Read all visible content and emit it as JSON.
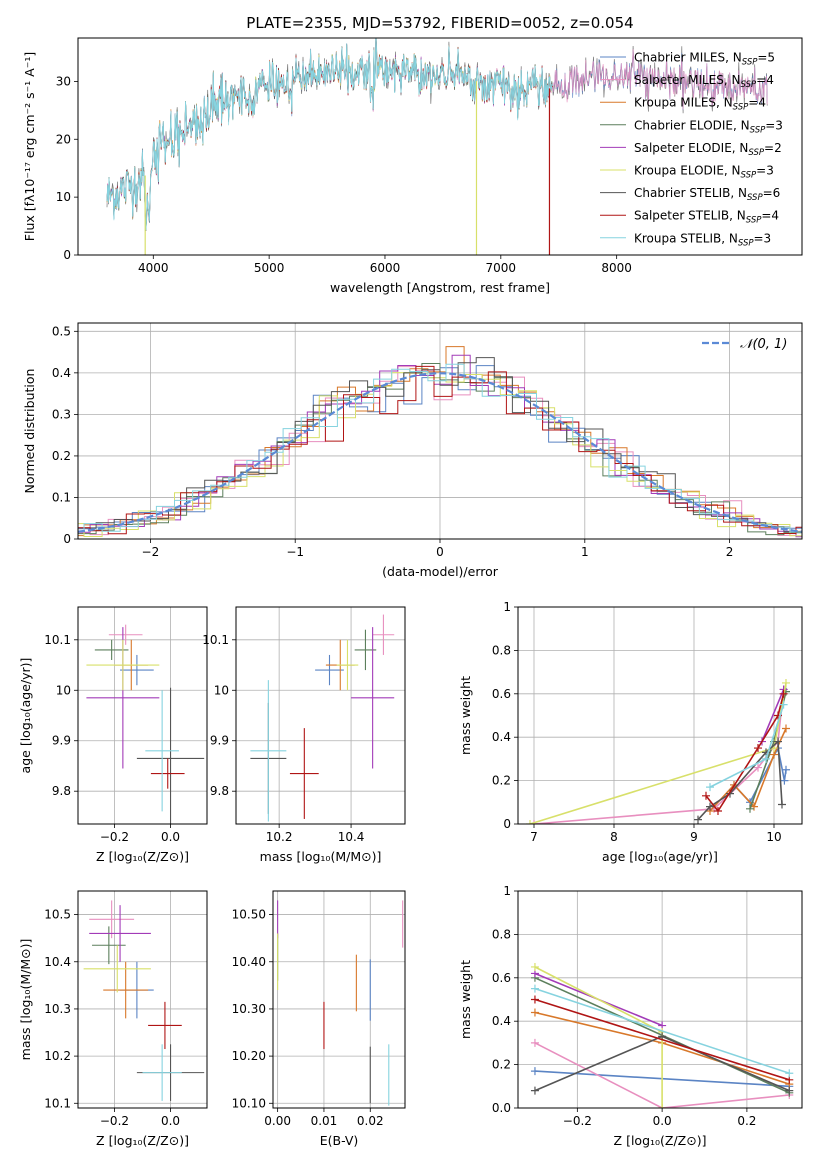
{
  "figure_title": "PLATE=2355, MJD=53792, FIBERID=0052, z=0.054",
  "models": [
    {
      "name": "Chabrier MILES",
      "nssp": "5",
      "color": "#5b84c4"
    },
    {
      "name": "Salpeter MILES",
      "nssp": "4",
      "color": "#e88fbf"
    },
    {
      "name": "Kroupa MILES",
      "nssp": "4",
      "color": "#d8782a"
    },
    {
      "name": "Chabrier ELODIE",
      "nssp": "3",
      "color": "#5c7f5c"
    },
    {
      "name": "Salpeter ELODIE",
      "nssp": "2",
      "color": "#a23bb8"
    },
    {
      "name": "Kroupa ELODIE",
      "nssp": "3",
      "color": "#d8e06a"
    },
    {
      "name": "Chabrier STELIB",
      "nssp": "6",
      "color": "#555555"
    },
    {
      "name": "Salpeter STELIB",
      "nssp": "4",
      "color": "#b01515"
    },
    {
      "name": "Kroupa STELIB",
      "nssp": "3",
      "color": "#86d3df"
    }
  ],
  "chart_data": [
    {
      "id": "spectrum",
      "type": "line",
      "xlabel": "wavelength [Angstrom, rest frame]",
      "ylabel": "Flux [fλ10⁻¹⁷ erg cm⁻² s⁻¹ A⁻¹]",
      "xlim": [
        3350,
        9600
      ],
      "ylim": [
        0,
        37.5
      ],
      "xticks": [
        4000,
        5000,
        6000,
        7000,
        8000
      ],
      "yticks": [
        0,
        10,
        20,
        30
      ],
      "grid": false,
      "legend_position": "top-right",
      "continuum": {
        "x": [
          3600,
          3800,
          3950,
          4050,
          4300,
          4600,
          4900,
          5200,
          5500,
          5900,
          6300,
          6700,
          7000,
          7300,
          7500,
          7800,
          8100,
          8400,
          8800,
          9100,
          9300
        ],
        "y": [
          10,
          12,
          14,
          19,
          22,
          26,
          29,
          30.5,
          31.5,
          32,
          31.5,
          30.5,
          29,
          28.5,
          29,
          31,
          31,
          30,
          29.5,
          29,
          28.5
        ]
      },
      "drops": [
        {
          "x": 3930,
          "model": "Kroupa ELODIE"
        },
        {
          "x": 6790,
          "model": "Kroupa ELODIE"
        },
        {
          "x": 7420,
          "model": "Salpeter STELIB"
        }
      ]
    },
    {
      "id": "residuals",
      "type": "line",
      "xlabel": "(data-model)/error",
      "ylabel": "Normed distribution",
      "xlim": [
        -2.5,
        2.5
      ],
      "ylim": [
        0,
        0.52
      ],
      "xticks": [
        -2,
        -1,
        0,
        1,
        2
      ],
      "yticks": [
        0.0,
        0.1,
        0.2,
        0.3,
        0.4,
        0.5
      ],
      "grid": true,
      "legend_position": "top-right",
      "reference_curve": {
        "name": "𝒩(0, 1)",
        "mean": 0,
        "sigma": 1,
        "color": "#5b8ad6"
      },
      "bin_width": 0.125
    },
    {
      "id": "age_vs_Z",
      "type": "scatter",
      "xlabel": "Z [log₁₀(Z/Z⊙)]",
      "ylabel": "age  [log₁₀(age/yr)]",
      "xlim": [
        -0.33,
        0.13
      ],
      "ylim": [
        9.735,
        10.165
      ],
      "xticks": [
        -0.2,
        0.0
      ],
      "yticks": [
        9.8,
        9.9,
        10.0,
        10.1
      ],
      "grid": true,
      "points": [
        {
          "model": "Chabrier MILES",
          "x": -0.12,
          "xerr": 0.06,
          "y": 10.04,
          "yerr": 0.03
        },
        {
          "model": "Salpeter MILES",
          "x": -0.16,
          "xerr": 0.06,
          "y": 10.11,
          "yerr": 0.02
        },
        {
          "model": "Kroupa MILES",
          "x": -0.14,
          "xerr": 0.06,
          "y": 10.05,
          "yerr": 0.05
        },
        {
          "model": "Chabrier ELODIE",
          "x": -0.21,
          "xerr": 0.06,
          "y": 10.08,
          "yerr": 0.02
        },
        {
          "model": "Salpeter ELODIE",
          "x": -0.17,
          "xerr": 0.13,
          "y": 9.985,
          "yerr": 0.14
        },
        {
          "model": "Kroupa ELODIE",
          "x": -0.17,
          "xerr": 0.13,
          "y": 10.05,
          "yerr": 0.05
        },
        {
          "model": "Chabrier STELIB",
          "x": 0.0,
          "xerr": 0.12,
          "y": 9.865,
          "yerr": 0.14
        },
        {
          "model": "Salpeter STELIB",
          "x": -0.01,
          "xerr": 0.06,
          "y": 9.835,
          "yerr": 0.03
        },
        {
          "model": "Kroupa STELIB",
          "x": -0.03,
          "xerr": 0.06,
          "y": 9.88,
          "yerr": 0.12
        }
      ]
    },
    {
      "id": "age_vs_mass",
      "type": "scatter",
      "xlabel": "mass [log₁₀(M/M⊙)]",
      "ylabel": "",
      "xlim": [
        10.08,
        10.55
      ],
      "ylim": [
        9.735,
        10.165
      ],
      "xticks": [
        10.2,
        10.4
      ],
      "yticks": [
        9.8,
        9.9,
        10.0,
        10.1
      ],
      "grid": true,
      "points": [
        {
          "model": "Chabrier MILES",
          "x": 10.34,
          "xerr": 0.04,
          "y": 10.04,
          "yerr": 0.03
        },
        {
          "model": "Salpeter MILES",
          "x": 10.49,
          "xerr": 0.03,
          "y": 10.11,
          "yerr": 0.04
        },
        {
          "model": "Kroupa MILES",
          "x": 10.37,
          "xerr": 0.04,
          "y": 10.05,
          "yerr": 0.05
        },
        {
          "model": "Chabrier ELODIE",
          "x": 10.44,
          "xerr": 0.03,
          "y": 10.08,
          "yerr": 0.04
        },
        {
          "model": "Salpeter ELODIE",
          "x": 10.46,
          "xerr": 0.06,
          "y": 9.985,
          "yerr": 0.14
        },
        {
          "model": "Kroupa ELODIE",
          "x": 10.39,
          "xerr": 0.03,
          "y": 10.05,
          "yerr": 0.05
        },
        {
          "model": "Chabrier STELIB",
          "x": 10.17,
          "xerr": 0.05,
          "y": 9.865,
          "yerr": 0.11
        },
        {
          "model": "Salpeter STELIB",
          "x": 10.27,
          "xerr": 0.04,
          "y": 9.835,
          "yerr": 0.09
        },
        {
          "model": "Kroupa STELIB",
          "x": 10.17,
          "xerr": 0.05,
          "y": 9.88,
          "yerr": 0.14
        }
      ]
    },
    {
      "id": "mass_weight_vs_age",
      "type": "line",
      "xlabel": "age  [log₁₀(age/yr)]",
      "ylabel": "mass weight",
      "xlim": [
        6.8,
        10.35
      ],
      "ylim": [
        0,
        1.0
      ],
      "xticks": [
        7,
        8,
        9,
        10
      ],
      "yticks": [
        0.0,
        0.2,
        0.4,
        0.6,
        0.8,
        1.0
      ],
      "grid": true,
      "series": [
        {
          "model": "Chabrier MILES",
          "x": [
            9.5,
            9.7,
            10.05,
            10.13,
            10.15
          ],
          "y": [
            0.18,
            0.1,
            0.35,
            0.2,
            0.25
          ]
        },
        {
          "model": "Salpeter MILES",
          "x": [
            7.0,
            9.25,
            9.8,
            10.05,
            10.12
          ],
          "y": [
            0.0,
            0.07,
            0.26,
            0.38,
            0.62
          ]
        },
        {
          "model": "Kroupa MILES",
          "x": [
            9.2,
            9.5,
            9.75,
            10.0,
            10.15
          ],
          "y": [
            0.06,
            0.18,
            0.08,
            0.32,
            0.44
          ]
        },
        {
          "model": "Chabrier ELODIE",
          "x": [
            9.7,
            10.0,
            10.15
          ],
          "y": [
            0.07,
            0.38,
            0.61
          ]
        },
        {
          "model": "Salpeter ELODIE",
          "x": [
            9.85,
            10.12
          ],
          "y": [
            0.38,
            0.62
          ]
        },
        {
          "model": "Kroupa ELODIE",
          "x": [
            6.95,
            10.0,
            10.15
          ],
          "y": [
            0.0,
            0.35,
            0.65
          ]
        },
        {
          "model": "Chabrier STELIB",
          "x": [
            9.05,
            9.2,
            9.45,
            9.9,
            10.05,
            10.1
          ],
          "y": [
            0.02,
            0.08,
            0.14,
            0.33,
            0.38,
            0.09
          ]
        },
        {
          "model": "Salpeter STELIB",
          "x": [
            9.15,
            9.3,
            9.8,
            10.05,
            10.12
          ],
          "y": [
            0.13,
            0.06,
            0.35,
            0.5,
            0.6
          ]
        },
        {
          "model": "Kroupa STELIB",
          "x": [
            9.2,
            9.9,
            10.12
          ],
          "y": [
            0.17,
            0.3,
            0.55
          ]
        }
      ]
    },
    {
      "id": "mass_vs_Z",
      "type": "scatter",
      "xlabel": "Z [log₁₀(Z/Z⊙)]",
      "ylabel": "mass [log₁₀(M/M⊙)]",
      "xlim": [
        -0.33,
        0.13
      ],
      "ylim": [
        10.09,
        10.55
      ],
      "xticks": [
        -0.2,
        0.0
      ],
      "yticks": [
        10.1,
        10.2,
        10.3,
        10.4,
        10.5
      ],
      "grid": true,
      "points": [
        {
          "model": "Chabrier MILES",
          "x": -0.12,
          "xerr": 0.06,
          "y": 10.34,
          "yerr": 0.06
        },
        {
          "model": "Salpeter MILES",
          "x": -0.21,
          "xerr": 0.08,
          "y": 10.49,
          "yerr": 0.04
        },
        {
          "model": "Kroupa MILES",
          "x": -0.16,
          "xerr": 0.08,
          "y": 10.34,
          "yerr": 0.06
        },
        {
          "model": "Chabrier ELODIE",
          "x": -0.22,
          "xerr": 0.06,
          "y": 10.435,
          "yerr": 0.04
        },
        {
          "model": "Salpeter ELODIE",
          "x": -0.18,
          "xerr": 0.11,
          "y": 10.46,
          "yerr": 0.06
        },
        {
          "model": "Kroupa ELODIE",
          "x": -0.19,
          "xerr": 0.12,
          "y": 10.385,
          "yerr": 0.05
        },
        {
          "model": "Chabrier STELIB",
          "x": 0.0,
          "xerr": 0.12,
          "y": 10.165,
          "yerr": 0.06
        },
        {
          "model": "Salpeter STELIB",
          "x": -0.02,
          "xerr": 0.06,
          "y": 10.265,
          "yerr": 0.05
        },
        {
          "model": "Kroupa STELIB",
          "x": -0.03,
          "xerr": 0.07,
          "y": 10.165,
          "yerr": 0.06
        }
      ]
    },
    {
      "id": "mass_vs_EBV",
      "type": "scatter",
      "xlabel": "E(B-V)",
      "ylabel": "",
      "xlim": [
        -0.001,
        0.0275
      ],
      "ylim": [
        10.09,
        10.55
      ],
      "xticks": [
        0.0,
        0.01,
        0.02
      ],
      "yticks": [
        10.1,
        10.2,
        10.3,
        10.4,
        10.5
      ],
      "grid": true,
      "points": [
        {
          "model": "Chabrier MILES",
          "x": 0.02,
          "xerr": 0,
          "y": 10.34,
          "yerr": 0.065
        },
        {
          "model": "Salpeter MILES",
          "x": 0.027,
          "xerr": 0,
          "y": 10.48,
          "yerr": 0.05
        },
        {
          "model": "Kroupa MILES",
          "x": 0.017,
          "xerr": 0,
          "y": 10.355,
          "yerr": 0.06
        },
        {
          "model": "Chabrier ELODIE",
          "x": 0.0,
          "xerr": 0,
          "y": 10.41,
          "yerr": 0.05
        },
        {
          "model": "Salpeter ELODIE",
          "x": 0.0,
          "xerr": 0,
          "y": 10.49,
          "yerr": 0.04
        },
        {
          "model": "Kroupa ELODIE",
          "x": 0.0,
          "xerr": 0,
          "y": 10.4,
          "yerr": 0.06
        },
        {
          "model": "Chabrier STELIB",
          "x": 0.02,
          "xerr": 0,
          "y": 10.16,
          "yerr": 0.06
        },
        {
          "model": "Salpeter STELIB",
          "x": 0.01,
          "xerr": 0,
          "y": 10.265,
          "yerr": 0.05
        },
        {
          "model": "Kroupa STELIB",
          "x": 0.024,
          "xerr": 0,
          "y": 10.16,
          "yerr": 0.065
        }
      ]
    },
    {
      "id": "mass_weight_vs_Z",
      "type": "line",
      "xlabel": "Z [log₁₀(Z/Z⊙)]",
      "ylabel": "mass weight",
      "xlim": [
        -0.34,
        0.33
      ],
      "ylim": [
        0,
        1.0
      ],
      "xticks": [
        -0.2,
        0.0,
        0.2
      ],
      "yticks": [
        0.0,
        0.2,
        0.4,
        0.6,
        0.8,
        1.0
      ],
      "grid": true,
      "series": [
        {
          "model": "Chabrier MILES",
          "x": [
            -0.3,
            0.3
          ],
          "y": [
            0.17,
            0.1
          ]
        },
        {
          "model": "Salpeter MILES",
          "x": [
            -0.3,
            0.0,
            0.3
          ],
          "y": [
            0.3,
            0.0,
            0.06
          ]
        },
        {
          "model": "Kroupa MILES",
          "x": [
            -0.3,
            0.0,
            0.3
          ],
          "y": [
            0.44,
            0.3,
            0.11
          ]
        },
        {
          "model": "Chabrier ELODIE",
          "x": [
            -0.3,
            0.3
          ],
          "y": [
            0.6,
            0.07
          ]
        },
        {
          "model": "Salpeter ELODIE",
          "x": [
            -0.3,
            0.0
          ],
          "y": [
            0.62,
            0.38
          ]
        },
        {
          "model": "Kroupa ELODIE",
          "x": [
            -0.3,
            0.0,
            0.0
          ],
          "y": [
            0.65,
            0.35,
            0.0
          ]
        },
        {
          "model": "Chabrier STELIB",
          "x": [
            -0.3,
            0.0,
            0.3
          ],
          "y": [
            0.08,
            0.33,
            0.08
          ]
        },
        {
          "model": "Salpeter STELIB",
          "x": [
            -0.3,
            0.3
          ],
          "y": [
            0.5,
            0.13
          ]
        },
        {
          "model": "Kroupa STELIB",
          "x": [
            -0.3,
            0.3
          ],
          "y": [
            0.55,
            0.16
          ]
        }
      ]
    }
  ]
}
